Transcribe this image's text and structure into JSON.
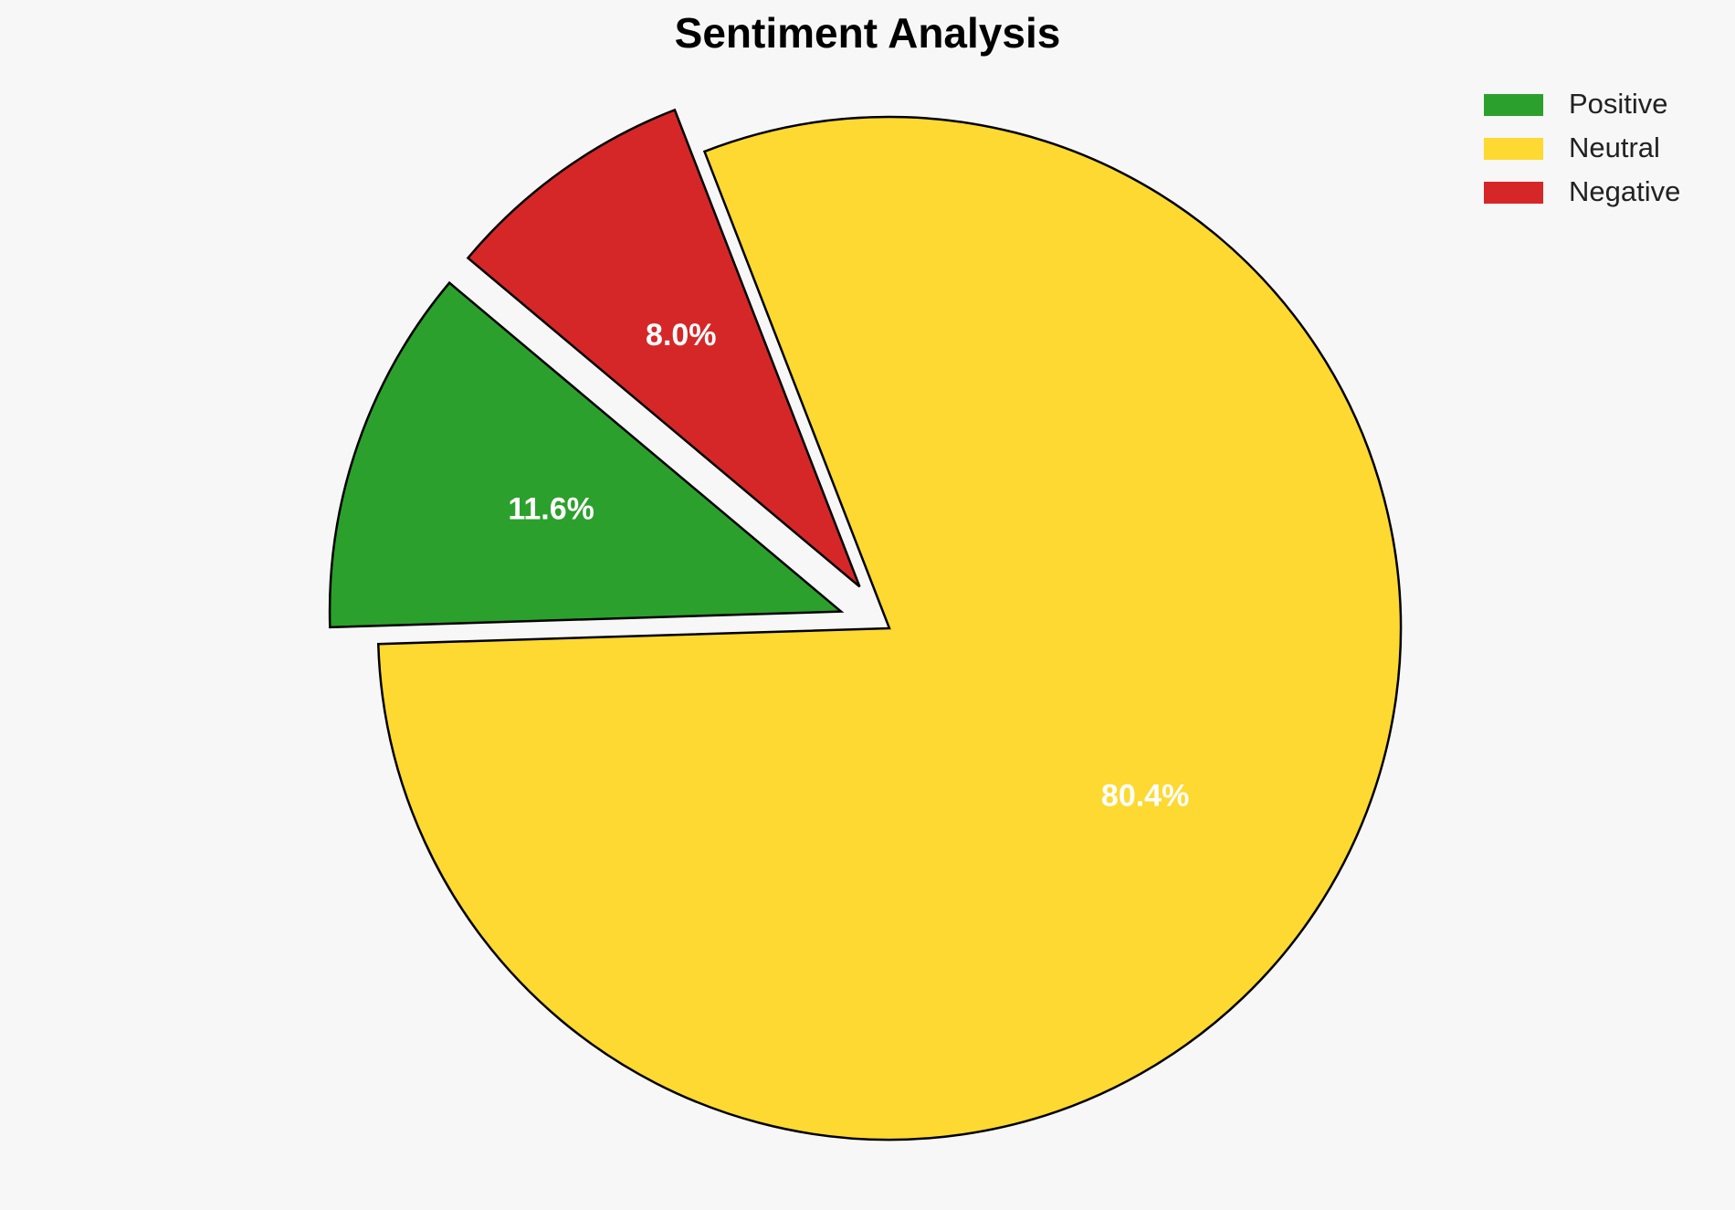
{
  "chart_data": {
    "type": "pie",
    "title": "Sentiment Analysis",
    "categories": [
      "Positive",
      "Neutral",
      "Negative"
    ],
    "values": [
      11.6,
      80.4,
      8.0
    ],
    "value_labels": [
      "11.6%",
      "80.4%",
      "8.0%"
    ],
    "colors": [
      "#2ca02c",
      "#fdd931",
      "#d62728"
    ],
    "explode": [
      0.1,
      0,
      0.1
    ],
    "startangle": 140,
    "legend": "upper right"
  }
}
